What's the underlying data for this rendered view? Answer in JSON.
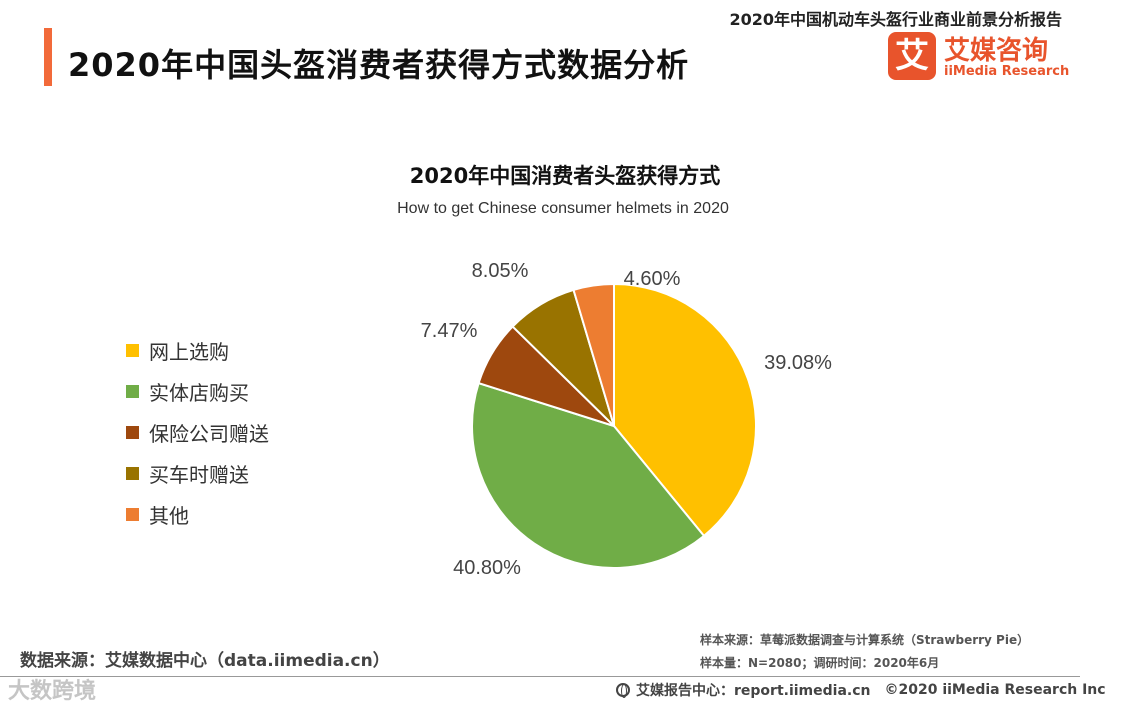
{
  "header": {
    "report_title": "2020年中国机动车头盔行业商业前景分析报告",
    "page_title": "2020年中国头盔消费者获得方式数据分析",
    "accent_color": "#f26a3a"
  },
  "logo": {
    "mark": "艾",
    "name_cn": "艾媒咨询",
    "name_en": "iiMedia Research",
    "color": "#e8542c"
  },
  "chart_data": {
    "type": "pie",
    "title": "2020年中国消费者头盔获得方式",
    "subtitle": "How to get Chinese consumer helmets in 2020",
    "legend_position": "left",
    "slices": [
      {
        "label": "网上选购",
        "value": 39.08,
        "display": "39.08%",
        "color": "#ffc000"
      },
      {
        "label": "实体店购买",
        "value": 40.8,
        "display": "40.80%",
        "color": "#70ad47"
      },
      {
        "label": "保险公司赠送",
        "value": 7.47,
        "display": "7.47%",
        "color": "#9e480e"
      },
      {
        "label": "买车时赠送",
        "value": 8.05,
        "display": "8.05%",
        "color": "#997300"
      },
      {
        "label": "其他",
        "value": 4.6,
        "display": "4.60%",
        "color": "#ed7d31"
      }
    ]
  },
  "footer": {
    "data_source": "数据来源：艾媒数据中心（data.iimedia.cn）",
    "sample_source": "样本来源：草莓派数据调查与计算系统（Strawberry Pie）",
    "sample_size": "样本量：N=2080；调研时间：2020年6月",
    "report_center": "艾媒报告中心：report.iimedia.cn",
    "copyright": "©2020  iiMedia Research  Inc",
    "watermark": "大数跨境"
  }
}
